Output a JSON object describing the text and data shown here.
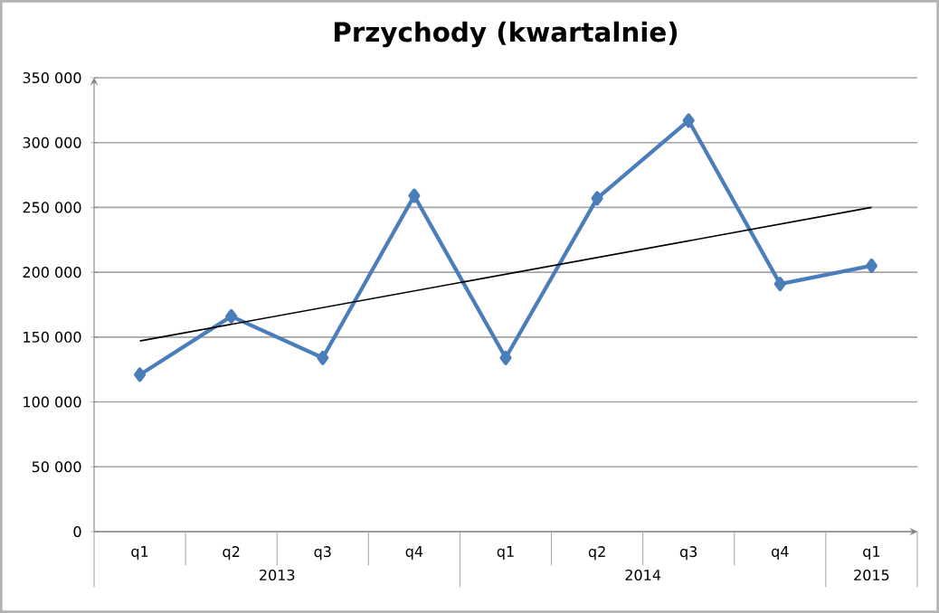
{
  "chart_data": {
    "type": "line",
    "title": "Przychody (kwartalnie)",
    "categories": [
      "q1",
      "q2",
      "q3",
      "q4",
      "q1",
      "q2",
      "q3",
      "q4",
      "q1"
    ],
    "annotations": [
      "2013",
      "2014",
      "2015"
    ],
    "series": [
      {
        "color": "#4a7ebb",
        "marker": "diamond",
        "values": [
          121000,
          166000,
          134000,
          259000,
          134000,
          257000,
          317000,
          191000,
          205000
        ]
      },
      {
        "type": "line",
        "color": "#000000",
        "marker": "none",
        "values": [
          147000,
          null,
          null,
          null,
          null,
          null,
          null,
          null,
          250000
        ]
      }
    ],
    "ylim": [
      0,
      350000
    ],
    "yticks": [
      {
        "value": 0,
        "label": "0"
      },
      {
        "value": 50000,
        "label": "50 000"
      },
      {
        "value": 100000,
        "label": "100 000"
      },
      {
        "value": 150000,
        "label": "150 000"
      },
      {
        "value": 200000,
        "label": "200 000"
      },
      {
        "value": 250000,
        "label": "250 000"
      },
      {
        "value": 300000,
        "label": "300 000"
      },
      {
        "value": 350000,
        "label": "350 000"
      }
    ],
    "grid": "y",
    "legend": false
  }
}
